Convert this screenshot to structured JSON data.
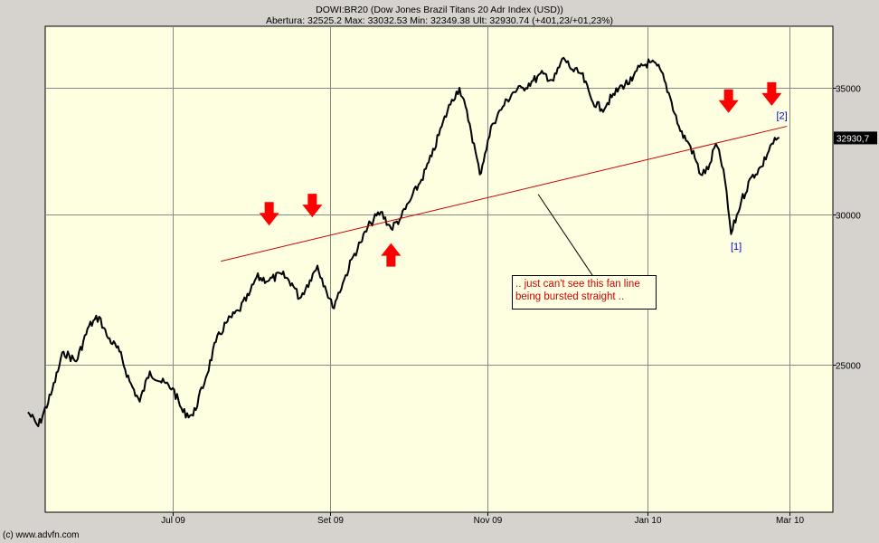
{
  "header": {
    "title": "DOWI:BR20 (Dow Jones Brazil Titans 20 Adr Index (USD))",
    "stats": "Abertura: 32525.2 Max: 33032.53 Min: 32349.38 Ult: 32930.74 (+401,23/+01,23%)"
  },
  "footer": {
    "copyright": "(c) www.advfn.com"
  },
  "colors": {
    "plot_bg": "#fefee0",
    "frame_bg": "#d6d3ce",
    "price_line": "#000000",
    "fan_line": "#cc0000",
    "arrow": "#ff0000",
    "wave_label": "#0000cc"
  },
  "chart_data": {
    "type": "line",
    "title": "DOWI:BR20 (Dow Jones Brazil Titans 20 Adr Index (USD))",
    "x_axis": {
      "ticks": [
        {
          "label": "Jul 09",
          "date": "2009-07-01"
        },
        {
          "label": "Set 09",
          "date": "2009-09-01"
        },
        {
          "label": "Nov 09",
          "date": "2009-11-02"
        },
        {
          "label": "Jan 10",
          "date": "2010-01-04"
        },
        {
          "label": "Mar 10",
          "date": "2010-03-01"
        }
      ],
      "range": [
        "2009-05-05",
        "2010-03-19"
      ]
    },
    "y_axis": {
      "scale": "log",
      "ticks": [
        25000,
        30000,
        35000
      ],
      "range": [
        21300,
        37200
      ],
      "last_value_label": "32930,7"
    },
    "series": [
      {
        "values": [
          [
            "2009-05-05",
            23600
          ],
          [
            "2009-05-09",
            23200
          ],
          [
            "2009-05-14",
            24100
          ],
          [
            "2009-05-19",
            25400
          ],
          [
            "2009-05-24",
            25100
          ],
          [
            "2009-05-29",
            26200
          ],
          [
            "2009-06-02",
            26500
          ],
          [
            "2009-06-05",
            25900
          ],
          [
            "2009-06-10",
            25400
          ],
          [
            "2009-06-14",
            24500
          ],
          [
            "2009-06-18",
            23900
          ],
          [
            "2009-06-22",
            24800
          ],
          [
            "2009-06-26",
            24500
          ],
          [
            "2009-07-01",
            24300
          ],
          [
            "2009-07-05",
            23600
          ],
          [
            "2009-07-09",
            23500
          ],
          [
            "2009-07-14",
            24600
          ],
          [
            "2009-07-18",
            25700
          ],
          [
            "2009-07-22",
            26300
          ],
          [
            "2009-07-27",
            26700
          ],
          [
            "2009-07-31",
            27200
          ],
          [
            "2009-08-03",
            27800
          ],
          [
            "2009-08-08",
            27700
          ],
          [
            "2009-08-13",
            27900
          ],
          [
            "2009-08-17",
            27600
          ],
          [
            "2009-08-20",
            27100
          ],
          [
            "2009-08-24",
            27700
          ],
          [
            "2009-08-27",
            28200
          ],
          [
            "2009-08-30",
            27500
          ],
          [
            "2009-09-02",
            26800
          ],
          [
            "2009-09-06",
            27600
          ],
          [
            "2009-09-10",
            28500
          ],
          [
            "2009-09-13",
            29000
          ],
          [
            "2009-09-17",
            29700
          ],
          [
            "2009-09-21",
            30100
          ],
          [
            "2009-09-25",
            29500
          ],
          [
            "2009-09-29",
            29900
          ],
          [
            "2009-10-03",
            30600
          ],
          [
            "2009-10-07",
            31300
          ],
          [
            "2009-10-11",
            32200
          ],
          [
            "2009-10-15",
            33400
          ],
          [
            "2009-10-19",
            34500
          ],
          [
            "2009-10-22",
            35000
          ],
          [
            "2009-10-26",
            33500
          ],
          [
            "2009-10-30",
            31500
          ],
          [
            "2009-11-01",
            32300
          ],
          [
            "2009-11-04",
            33500
          ],
          [
            "2009-11-08",
            34200
          ],
          [
            "2009-11-12",
            34800
          ],
          [
            "2009-11-16",
            35000
          ],
          [
            "2009-11-20",
            35300
          ],
          [
            "2009-11-24",
            35600
          ],
          [
            "2009-11-28",
            35300
          ],
          [
            "2009-12-02",
            36300
          ],
          [
            "2009-12-06",
            35700
          ],
          [
            "2009-12-09",
            35600
          ],
          [
            "2009-12-13",
            34500
          ],
          [
            "2009-12-17",
            34100
          ],
          [
            "2009-12-21",
            34600
          ],
          [
            "2009-12-25",
            35100
          ],
          [
            "2009-12-29",
            35300
          ],
          [
            "2010-01-01",
            35900
          ],
          [
            "2010-01-05",
            36100
          ],
          [
            "2010-01-09",
            35800
          ],
          [
            "2010-01-13",
            34600
          ],
          [
            "2010-01-17",
            33200
          ],
          [
            "2010-01-21",
            32600
          ],
          [
            "2010-01-25",
            31500
          ],
          [
            "2010-01-28",
            31700
          ],
          [
            "2010-01-31",
            32700
          ],
          [
            "2010-02-03",
            31700
          ],
          [
            "2010-02-06",
            29300
          ],
          [
            "2010-02-10",
            30500
          ],
          [
            "2010-02-14",
            31400
          ],
          [
            "2010-02-18",
            31800
          ],
          [
            "2010-02-22",
            32700
          ],
          [
            "2010-02-25",
            32930.74
          ]
        ]
      }
    ],
    "fan_line": {
      "start": [
        "2009-07-20",
        28350
      ],
      "end": [
        "2010-02-28",
        33400
      ]
    },
    "annotations": [
      {
        "type": "arrow-down",
        "at": [
          "2009-08-08",
          30000
        ]
      },
      {
        "type": "arrow-down",
        "at": [
          "2009-08-25",
          30300
        ]
      },
      {
        "type": "arrow-up",
        "at": [
          "2009-09-25",
          28600
        ]
      },
      {
        "type": "arrow-down",
        "at": [
          "2010-02-05",
          34400
        ]
      },
      {
        "type": "arrow-down",
        "at": [
          "2010-02-22",
          34700
        ]
      },
      {
        "type": "wave-label",
        "text": "[1]",
        "at": [
          "2010-02-08",
          28750
        ]
      },
      {
        "type": "wave-label",
        "text": "[2]",
        "at": [
          "2010-02-26",
          33700
        ]
      },
      {
        "type": "callout",
        "lines": [
          ".. just can't see this fan line",
          "being bursted straight .."
        ],
        "pointer_to": [
          "2009-11-22",
          30750
        ]
      }
    ]
  }
}
